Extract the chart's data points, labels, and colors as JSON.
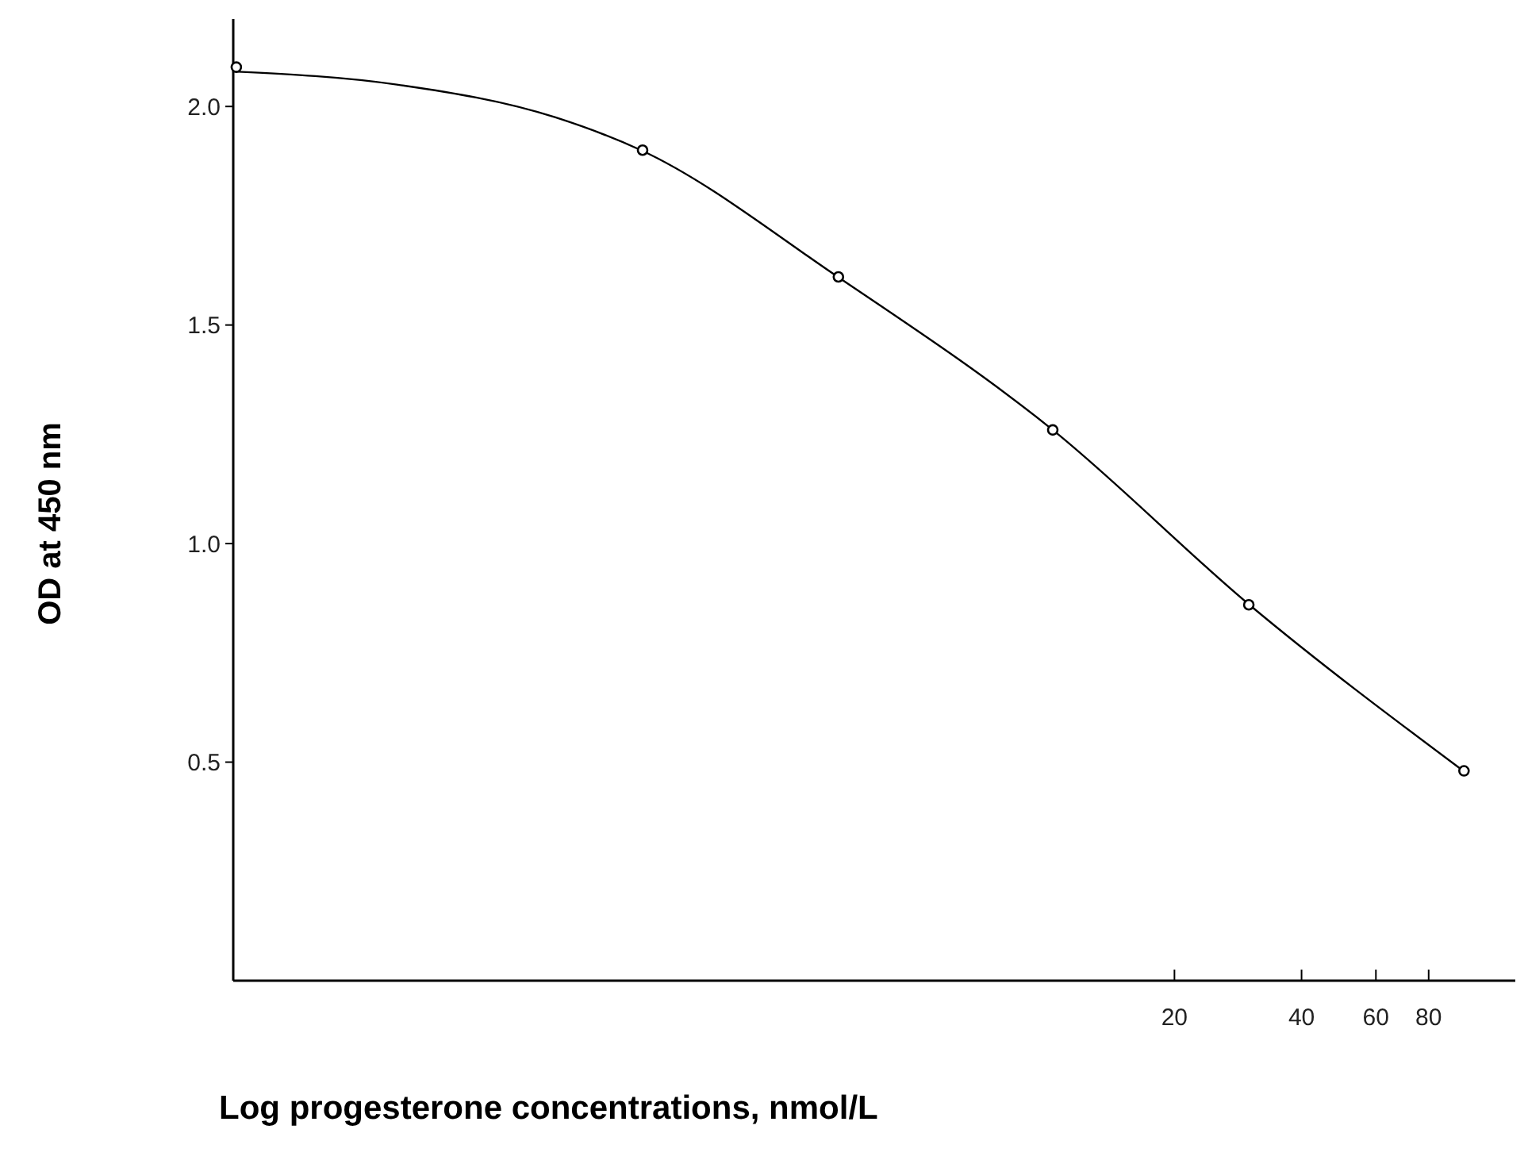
{
  "chart_data": {
    "type": "scatter",
    "xlabel": "Log progesterone concentrations, nmol/L",
    "ylabel": "OD at 450 nm",
    "log": "x",
    "xlim": [
      0.118,
      134
    ],
    "ylim": [
      0,
      2.2
    ],
    "xticks": [
      20,
      40,
      60,
      80
    ],
    "yticks": [
      0.5,
      {
        "value": 1,
        "label": "1.0"
      },
      1.5,
      {
        "value": 2,
        "label": "2.0"
      }
    ],
    "grid": false,
    "series": [
      {
        "color": "#000000",
        "marker": "circle",
        "x": [
          0.12,
          1.1,
          3.2,
          10.3,
          30,
          97
        ],
        "values": [
          2.09,
          1.9,
          1.61,
          1.26,
          0.86,
          0.48
        ]
      },
      {
        "type": "line",
        "color": "#000000",
        "marker": "none",
        "line_style": "solid",
        "x": [
          0.118,
          0.288,
          0.684,
          1.09,
          3.19,
          10.3,
          30.1,
          96.6
        ],
        "values": [
          2.08,
          2.05,
          1.975,
          1.9,
          1.61,
          1.26,
          0.86,
          0.48
        ]
      }
    ]
  }
}
